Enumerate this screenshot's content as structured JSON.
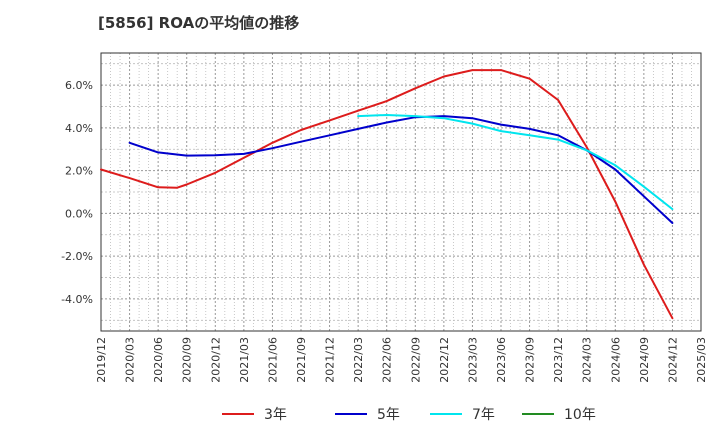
{
  "chart_data": {
    "type": "line",
    "title": "[5856]  ROAの平均値の推移",
    "xlabel": "",
    "ylabel": "",
    "x_ticks": [
      "2019/12",
      "2020/03",
      "2020/06",
      "2020/09",
      "2020/12",
      "2021/03",
      "2021/06",
      "2021/09",
      "2021/12",
      "2022/03",
      "2022/06",
      "2022/09",
      "2022/12",
      "2023/03",
      "2023/06",
      "2023/09",
      "2023/12",
      "2024/03",
      "2024/06",
      "2024/09",
      "2024/12",
      "2025/03"
    ],
    "y_ticks": [
      -4,
      -2,
      0,
      2,
      4,
      6
    ],
    "y_tick_labels": [
      "-4.0%",
      "-2.0%",
      "0.0%",
      "2.0%",
      "4.0%",
      "6.0%"
    ],
    "ylim": [
      -5.5,
      7.5
    ],
    "grid": true,
    "legend_position": "bottom",
    "series": [
      {
        "name": "3年",
        "color": "#dd1c1c",
        "x": [
          "2019/12",
          "2020/03",
          "2020/06",
          "2020/08",
          "2020/09",
          "2020/12",
          "2021/03",
          "2021/06",
          "2021/09",
          "2021/12",
          "2022/03",
          "2022/06",
          "2022/09",
          "2022/12",
          "2023/03",
          "2023/06",
          "2023/09",
          "2023/12",
          "2024/03",
          "2024/06",
          "2024/09",
          "2024/12"
        ],
        "values": [
          2.05,
          1.65,
          1.22,
          1.2,
          1.35,
          1.9,
          2.6,
          3.3,
          3.9,
          4.35,
          4.8,
          5.25,
          5.85,
          6.4,
          6.7,
          6.7,
          6.3,
          5.3,
          3.1,
          0.55,
          -2.4,
          -4.9
        ]
      },
      {
        "name": "5年",
        "color": "#0000cc",
        "x": [
          "2020/03",
          "2020/06",
          "2020/09",
          "2020/12",
          "2021/03",
          "2021/06",
          "2021/09",
          "2021/12",
          "2022/03",
          "2022/06",
          "2022/09",
          "2022/12",
          "2023/03",
          "2023/06",
          "2023/09",
          "2023/12",
          "2024/03",
          "2024/06",
          "2024/09",
          "2024/12"
        ],
        "values": [
          3.3,
          2.85,
          2.7,
          2.72,
          2.78,
          3.05,
          3.35,
          3.65,
          3.95,
          4.25,
          4.5,
          4.55,
          4.45,
          4.15,
          3.95,
          3.65,
          2.95,
          2.05,
          0.8,
          -0.45
        ]
      },
      {
        "name": "7年",
        "color": "#00e5ee",
        "x": [
          "2022/03",
          "2022/06",
          "2022/09",
          "2022/12",
          "2023/03",
          "2023/06",
          "2023/09",
          "2023/12",
          "2024/03",
          "2024/06",
          "2024/09",
          "2024/12"
        ],
        "values": [
          4.55,
          4.6,
          4.55,
          4.45,
          4.2,
          3.85,
          3.65,
          3.45,
          2.95,
          2.25,
          1.25,
          0.2
        ]
      },
      {
        "name": "10年",
        "color": "#228b22",
        "x": [],
        "values": []
      }
    ]
  }
}
